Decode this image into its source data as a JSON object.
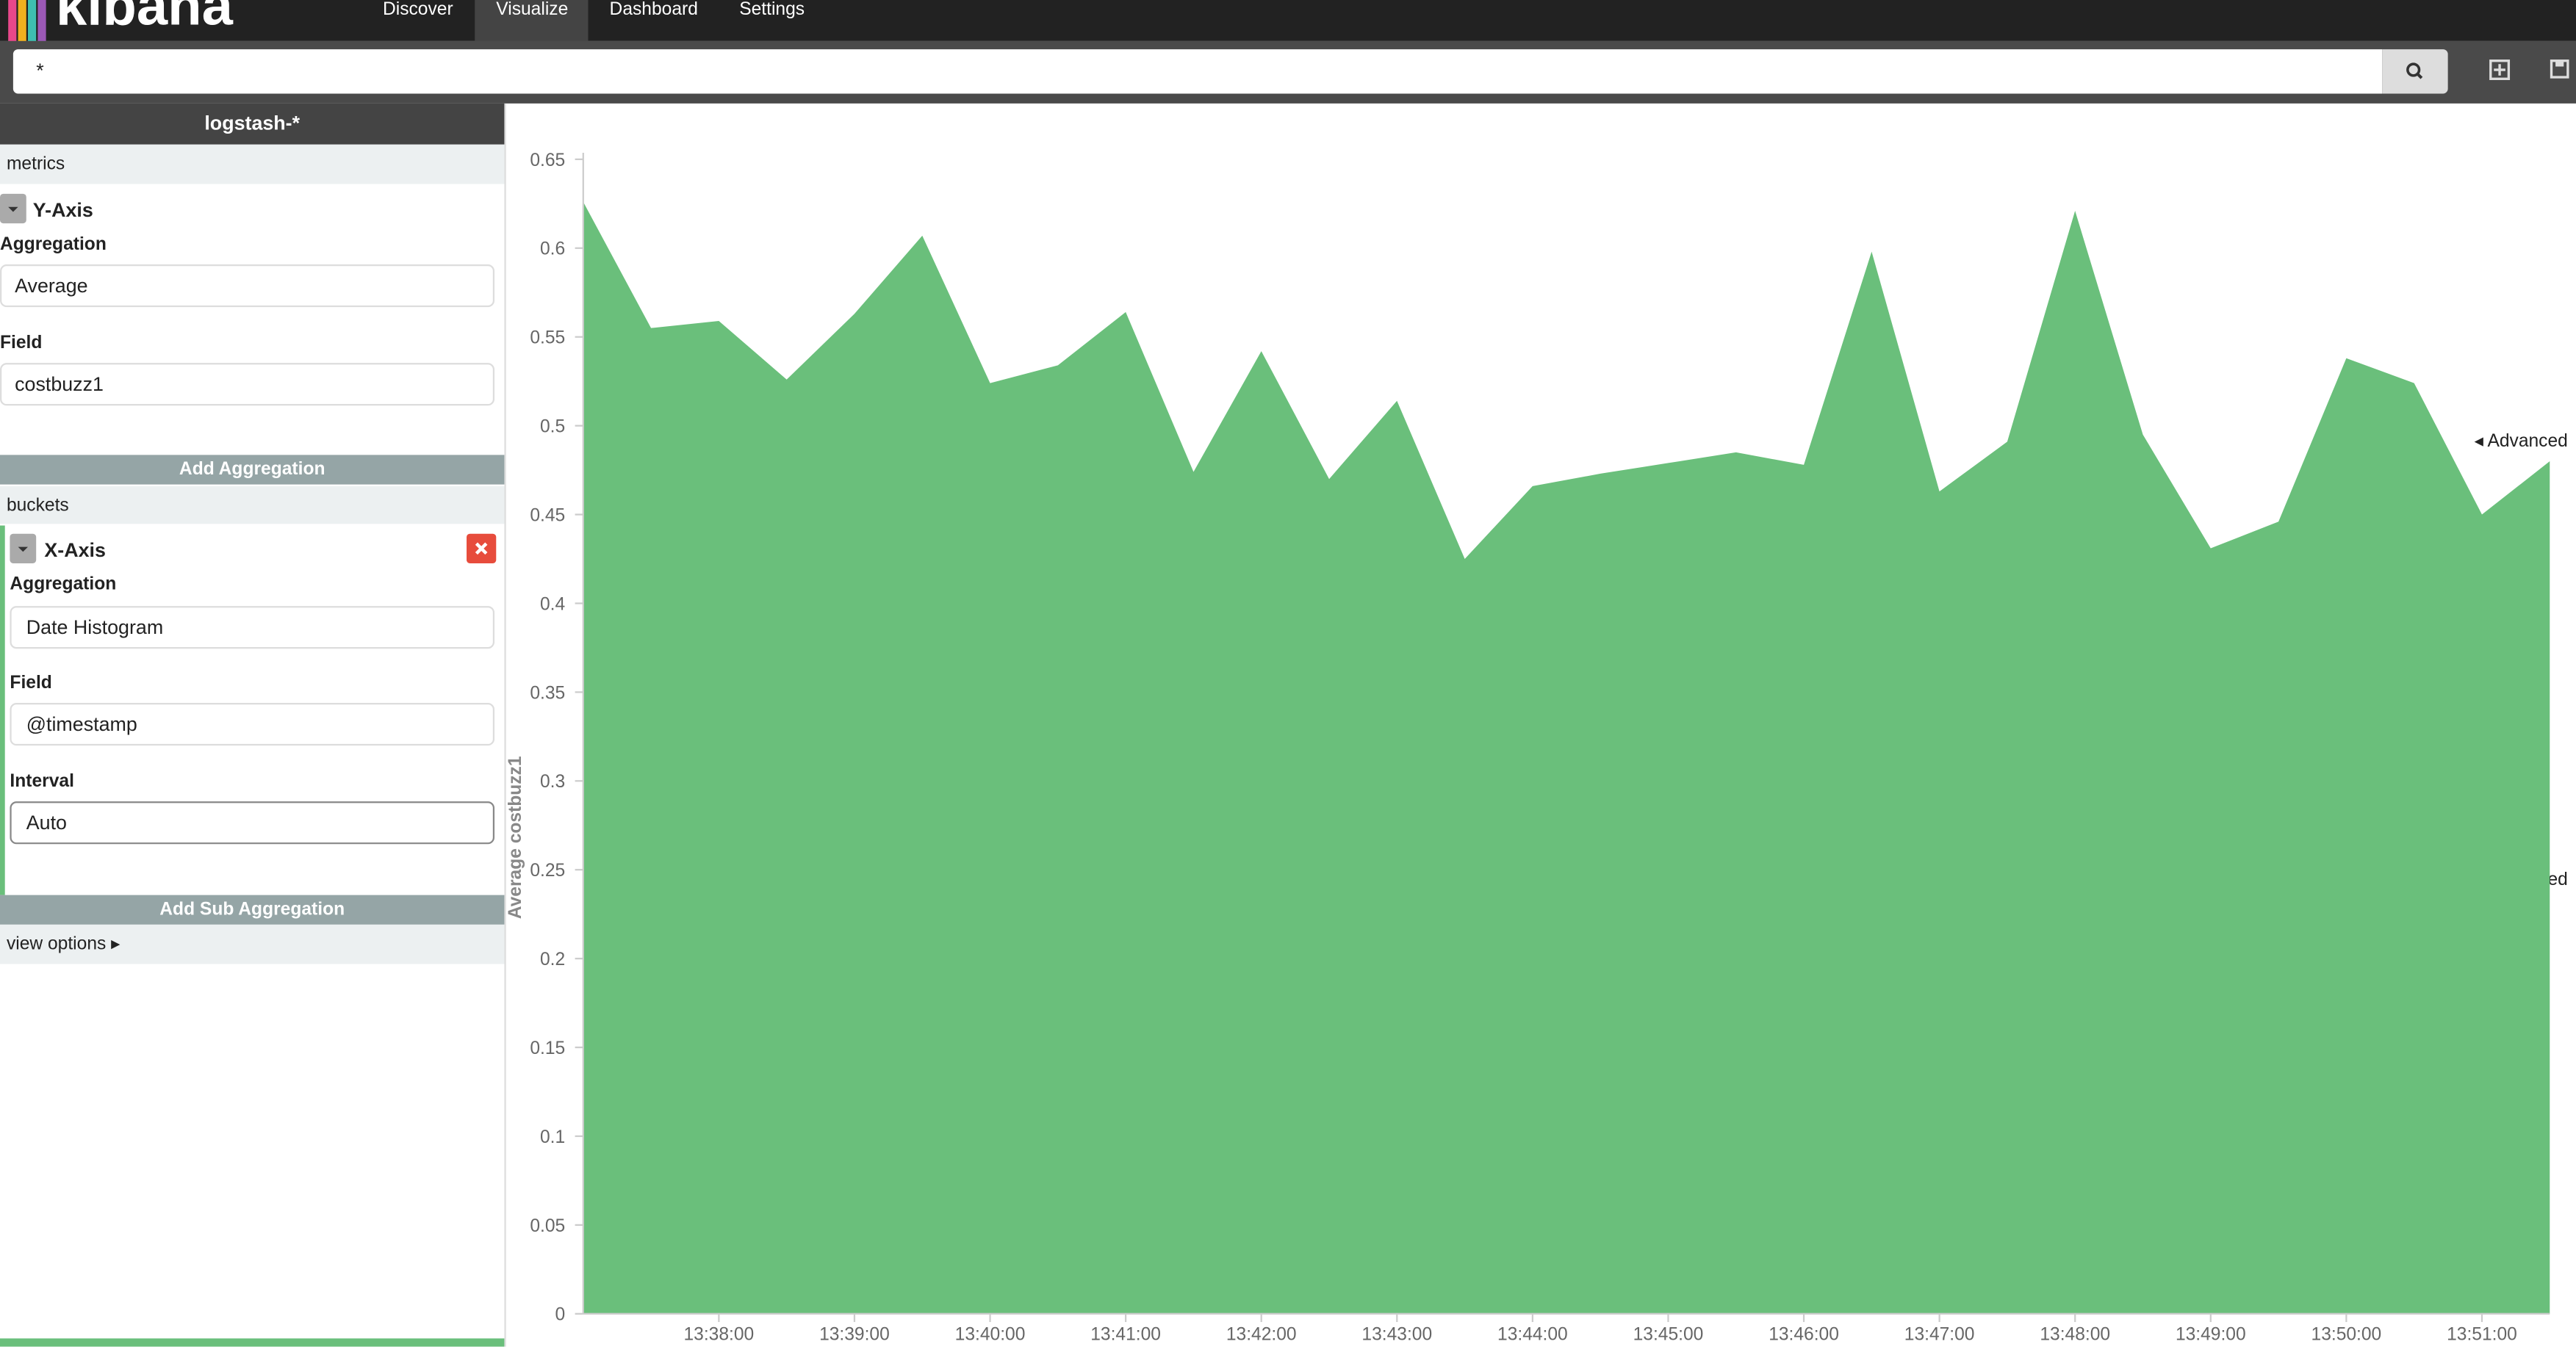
{
  "nav": {
    "logo": "kibana",
    "tabs": [
      "Discover",
      "Visualize",
      "Dashboard",
      "Settings"
    ]
  },
  "search": {
    "query": "*"
  },
  "sidebar": {
    "index": "logstash-*",
    "metrics_label": "metrics",
    "y_axis": {
      "title": "Y-Axis",
      "aggregation_label": "Aggregation",
      "aggregation": "Average",
      "field_label": "Field",
      "field": "costbuzz1",
      "advanced": "Advanced"
    },
    "add_aggregation": "Add Aggregation",
    "buckets_label": "buckets",
    "x_axis": {
      "title": "X-Axis",
      "aggregation_label": "Aggregation",
      "aggregation": "Date Histogram",
      "field_label": "Field",
      "field": "@timestamp",
      "interval_label": "Interval",
      "interval": "Auto",
      "advanced": "Advanced"
    },
    "add_sub_aggregation": "Add Sub Aggregation",
    "view_options": "view options"
  },
  "chart_data": {
    "type": "area",
    "y_label": "Average costbuzz1",
    "color": "#6abf7b",
    "x": [
      "13:37:00",
      "13:37:30",
      "13:38:00",
      "13:38:30",
      "13:39:00",
      "13:39:30",
      "13:40:00",
      "13:40:30",
      "13:41:00",
      "13:41:30",
      "13:42:00",
      "13:42:30",
      "13:43:00",
      "13:43:30",
      "13:44:00",
      "13:44:30",
      "13:45:00",
      "13:45:30",
      "13:46:00",
      "13:46:30",
      "13:47:00",
      "13:47:30",
      "13:48:00",
      "13:48:30",
      "13:49:00",
      "13:49:30",
      "13:50:00",
      "13:50:30",
      "13:51:00",
      "13:51:30"
    ],
    "values": [
      0.626,
      0.555,
      0.559,
      0.526,
      0.563,
      0.607,
      0.524,
      0.534,
      0.564,
      0.474,
      0.542,
      0.47,
      0.514,
      0.425,
      0.466,
      0.473,
      0.479,
      0.485,
      0.478,
      0.598,
      0.463,
      0.491,
      0.621,
      0.495,
      0.431,
      0.446,
      0.538,
      0.524,
      0.45,
      0.48
    ],
    "xlim": [
      "13:37:00",
      "13:51:30"
    ],
    "xticks": [
      "13:38:00",
      "13:39:00",
      "13:40:00",
      "13:41:00",
      "13:42:00",
      "13:43:00",
      "13:44:00",
      "13:45:00",
      "13:46:00",
      "13:47:00",
      "13:48:00",
      "13:49:00",
      "13:50:00",
      "13:51:00"
    ],
    "ylim": [
      0,
      0.65
    ],
    "yticks": [
      0,
      0.05,
      0.1,
      0.15,
      0.2,
      0.25,
      0.3,
      0.35,
      0.4,
      0.45,
      0.5,
      0.55,
      0.6,
      0.65
    ]
  }
}
